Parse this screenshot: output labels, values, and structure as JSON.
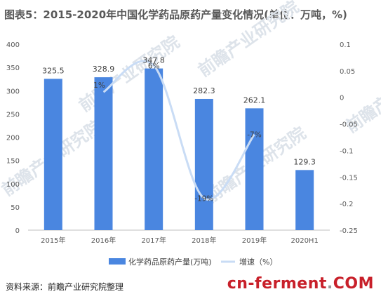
{
  "title": "图表5：2015-2020年中国化学药品原药产量变化情况(单位：万吨，%)",
  "footer": {
    "source": "资料来源：前瞻产业研究院整理",
    "brand": "cn-ferment",
    "brand_sep": ".",
    "brand_tld": "COM"
  },
  "watermark": "前瞻产业研究院",
  "colors": {
    "bar": "#4a86e0",
    "line": "#c9dcf5"
  },
  "chart_data": {
    "type": "bar",
    "categories": [
      "2015年",
      "2016年",
      "2017年",
      "2018年",
      "2019年",
      "2020H1"
    ],
    "series": [
      {
        "name": "化学药品原药产量(万吨)",
        "type": "bar",
        "axis": "left",
        "values": [
          325.5,
          328.9,
          347.8,
          282.3,
          262.1,
          129.3
        ],
        "labels": [
          "325.5",
          "328.9",
          "347.8",
          "282.3",
          "262.1",
          "129.3"
        ]
      },
      {
        "name": "增速（%）",
        "type": "line",
        "axis": "right",
        "values": [
          null,
          0.01,
          0.06,
          -0.19,
          -0.07,
          null
        ],
        "labels": [
          "",
          "1%",
          "6%",
          "-19%",
          "-7%",
          ""
        ]
      }
    ],
    "y_left": {
      "min": 0,
      "max": 400,
      "ticks": [
        0,
        50,
        100,
        150,
        200,
        250,
        300,
        350,
        400
      ]
    },
    "y_right": {
      "min": -0.25,
      "max": 0.1,
      "ticks": [
        -0.25,
        -0.2,
        -0.15,
        -0.1,
        -0.05,
        0,
        0.05,
        0.1
      ],
      "tick_labels": [
        "-0.25",
        "-0.2",
        "-0.15",
        "-0.1",
        "-0.05",
        "0",
        "0.05",
        "0.1"
      ]
    },
    "legend_position": "bottom",
    "grid": false
  }
}
